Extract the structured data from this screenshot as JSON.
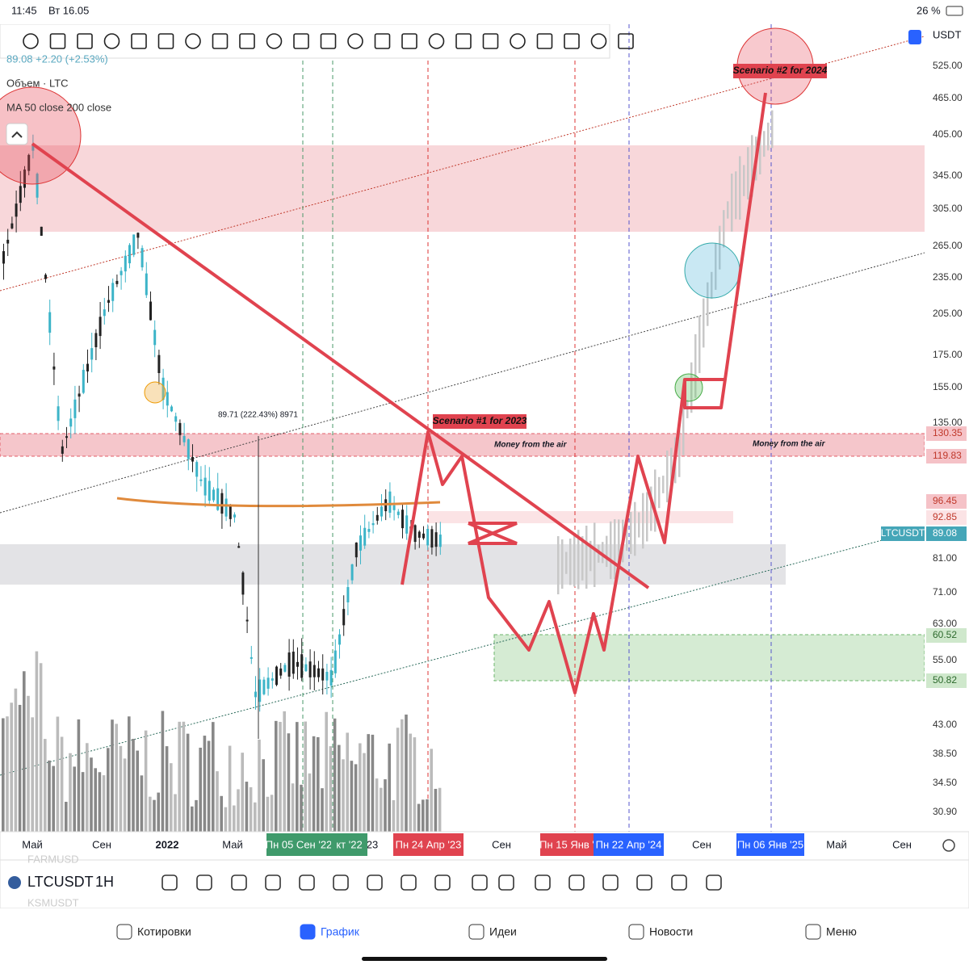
{
  "status_bar": {
    "time": "11:45",
    "date": "Вт 16.05",
    "battery": "26 %"
  },
  "legend": {
    "price": "89.08 +2.20 (+2.53%)",
    "volume": "Объем · LTC",
    "ma": "MA 50 close 200 close"
  },
  "currency": "USDT",
  "price_axis": [
    "525.00",
    "465.00",
    "405.00",
    "345.00",
    "305.00",
    "265.00",
    "235.00",
    "205.00",
    "175.00",
    "155.00",
    "135.00",
    "81.00",
    "71.00",
    "63.00",
    "55.00",
    "43.00",
    "38.50",
    "34.50",
    "30.90"
  ],
  "price_badges": [
    {
      "label": "130.35",
      "style": "red"
    },
    {
      "label": "119.83",
      "style": "red"
    },
    {
      "label": "96.45",
      "style": "red"
    },
    {
      "label": "92.85",
      "style": "pink"
    },
    {
      "label": "89.08",
      "style": "teal"
    },
    {
      "label": "60.52",
      "style": "green"
    },
    {
      "label": "50.82",
      "style": "green"
    }
  ],
  "time_axis": [
    "Май",
    "Сен",
    "2022",
    "Май",
    "23",
    "Сен",
    "Сен",
    "Май",
    "Сен"
  ],
  "time_badges": [
    {
      "label": "Пн 05 Сен '22",
      "style": "green"
    },
    {
      "label": "кт '22",
      "style": "green"
    },
    {
      "label": "Пн 24 Апр '23",
      "style": "red"
    },
    {
      "label": "Пн 15 Янв '",
      "style": "red"
    },
    {
      "label": "Пн 22 Апр '24",
      "style": "blue"
    },
    {
      "label": "Пн 06 Янв '25",
      "style": "blue"
    }
  ],
  "annotations": {
    "scenario_2024": "Scenario #2 for 2024",
    "scenario_2023": "Scenario #1 for 2023",
    "money_1": "Money from the air",
    "money_2": "Money from the air",
    "measure": "89.71 (222.43%) 8971",
    "symbol_tag": "LTCUSDT"
  },
  "toolbar": {
    "symbol": "LTCUSDT",
    "interval": "1H",
    "ghost_above": "FARMUSD",
    "ghost_below": "KSMUSDT"
  },
  "nav": [
    "Котировки",
    "График",
    "Идеи",
    "Новости",
    "Меню"
  ]
}
